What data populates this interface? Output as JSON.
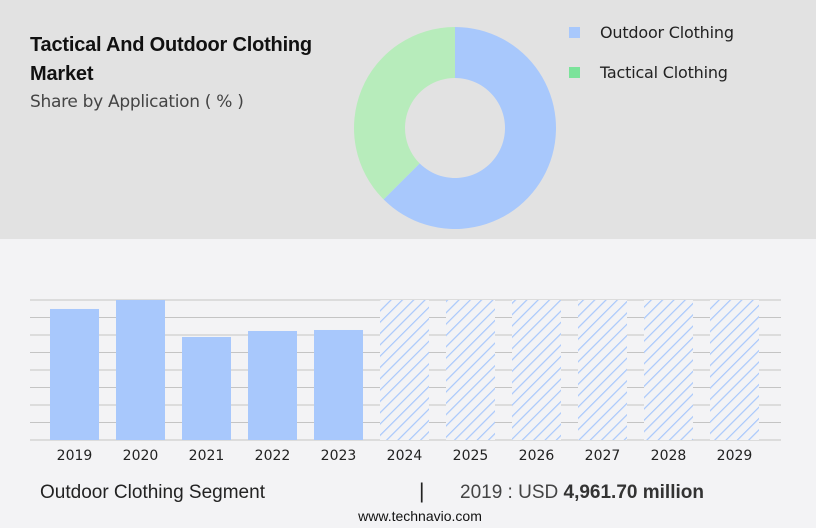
{
  "header": {
    "title": "Tactical And Outdoor Clothing Market",
    "subtitle": "Share by Application ( % )"
  },
  "colors": {
    "top_bg": "#e2e2e2",
    "bottom_bg": "#f3f3f5",
    "outdoor": "#a8c8fc",
    "tactical_donut": "#b7ecbb",
    "tactical_legend": "#7be39a",
    "grid": "#c4c4c4"
  },
  "legend": {
    "items": [
      {
        "label": "Outdoor Clothing",
        "color": "#a8c8fc"
      },
      {
        "label": "Tactical Clothing",
        "color": "#7be39a"
      }
    ]
  },
  "footer": {
    "segment": "Outdoor Clothing Segment",
    "separator": "|",
    "year_prefix": "2019 : USD ",
    "value": "4,961.70 million",
    "url": "www.technavio.com"
  },
  "chart_data": [
    {
      "type": "pie",
      "title": "Share by Application ( % )",
      "donut": true,
      "categories": [
        "Outdoor Clothing",
        "Tactical Clothing"
      ],
      "values": [
        62.5,
        37.5
      ],
      "legend_position": "right"
    },
    {
      "type": "bar",
      "title": "Outdoor Clothing Segment",
      "categories": [
        "2019",
        "2020",
        "2021",
        "2022",
        "2023",
        "2024",
        "2025",
        "2026",
        "2027",
        "2028",
        "2029"
      ],
      "values": [
        4961.7,
        5302,
        3901,
        4128,
        4166,
        null,
        null,
        null,
        null,
        null,
        null
      ],
      "forecast_years": [
        "2024",
        "2025",
        "2026",
        "2027",
        "2028",
        "2029"
      ],
      "forecast_style": "hatched, full height, values not shown",
      "ylabel": "USD million",
      "grid": true,
      "annotation": "2019 : USD 4,961.70 million"
    }
  ]
}
